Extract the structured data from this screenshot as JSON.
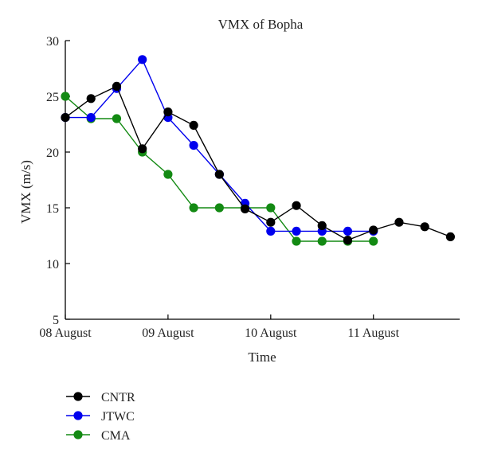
{
  "chart_data": {
    "type": "line",
    "title": "VMX of Bopha",
    "xlabel": "Time",
    "ylabel": "VMX (m/s)",
    "xlim": [
      0,
      3.84
    ],
    "ylim": [
      5,
      30
    ],
    "x_ticks": [
      {
        "value": 0,
        "label": "08 August"
      },
      {
        "value": 1,
        "label": "09 August"
      },
      {
        "value": 2,
        "label": "10 August"
      },
      {
        "value": 3,
        "label": "11 August"
      }
    ],
    "y_ticks": [
      5,
      10,
      15,
      20,
      25,
      30
    ],
    "grid": false,
    "legend_position": "bottom-left",
    "series": [
      {
        "name": "CNTR",
        "color": "#000000",
        "x": [
          0,
          0.25,
          0.5,
          0.75,
          1,
          1.25,
          1.5,
          1.75,
          2,
          2.25,
          2.5,
          2.75,
          3,
          3.25,
          3.5,
          3.75
        ],
        "values": [
          23.1,
          24.8,
          25.9,
          20.3,
          23.6,
          22.4,
          18.0,
          14.9,
          13.7,
          15.2,
          13.4,
          12.1,
          13.0,
          13.7,
          13.3,
          12.4
        ]
      },
      {
        "name": "JTWC",
        "color": "#0000ee",
        "x": [
          0,
          0.25,
          0.5,
          0.75,
          1,
          1.25,
          1.5,
          1.75,
          2,
          2.25,
          2.5,
          2.75,
          3
        ],
        "values": [
          23.1,
          23.1,
          25.7,
          28.3,
          23.1,
          20.6,
          18.0,
          15.4,
          12.9,
          12.9,
          12.9,
          12.9,
          12.9
        ]
      },
      {
        "name": "CMA",
        "color": "#138a13",
        "x": [
          0,
          0.25,
          0.5,
          0.75,
          1,
          1.25,
          1.5,
          1.75,
          2,
          2.25,
          2.5,
          2.75,
          3
        ],
        "values": [
          25,
          23,
          23,
          20,
          18,
          15,
          15,
          15,
          15,
          12,
          12,
          12,
          12
        ]
      }
    ]
  }
}
